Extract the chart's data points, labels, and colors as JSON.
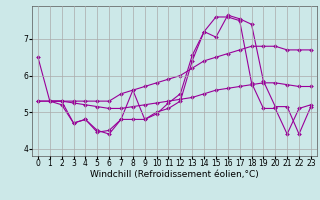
{
  "background_color": "#cce8e8",
  "grid_color": "#aaaaaa",
  "line_color": "#990099",
  "marker": "D",
  "markersize": 2,
  "linewidth": 0.8,
  "xlabel": "Windchill (Refroidissement éolien,°C)",
  "xlabel_fontsize": 6.5,
  "tick_fontsize": 5.5,
  "ylim": [
    3.8,
    7.9
  ],
  "xlim": [
    -0.5,
    23.5
  ],
  "yticks": [
    4,
    5,
    6,
    7
  ],
  "xticks": [
    0,
    1,
    2,
    3,
    4,
    5,
    6,
    7,
    8,
    9,
    10,
    11,
    12,
    13,
    14,
    15,
    16,
    17,
    18,
    19,
    20,
    21,
    22,
    23
  ],
  "series": [
    {
      "x": [
        0,
        1,
        2,
        3,
        4,
        5,
        6,
        7,
        8,
        9,
        10,
        11,
        12,
        13,
        14,
        15,
        16,
        17,
        18,
        19,
        20,
        21,
        22,
        23
      ],
      "y": [
        6.5,
        5.3,
        5.2,
        4.7,
        4.8,
        4.5,
        4.4,
        4.8,
        4.8,
        4.8,
        5.0,
        5.1,
        5.3,
        6.4,
        7.2,
        7.6,
        7.6,
        7.5,
        5.8,
        5.1,
        5.1,
        4.4,
        5.1,
        5.2
      ]
    },
    {
      "x": [
        0,
        1,
        2,
        3,
        4,
        5,
        6,
        7,
        8,
        9,
        10,
        11,
        12,
        13,
        14,
        15,
        16,
        17,
        18,
        19,
        20,
        21,
        22,
        23
      ],
      "y": [
        5.3,
        5.3,
        5.3,
        5.3,
        5.3,
        5.3,
        5.3,
        5.5,
        5.6,
        5.7,
        5.8,
        5.9,
        6.0,
        6.2,
        6.4,
        6.5,
        6.6,
        6.7,
        6.8,
        6.8,
        6.8,
        6.7,
        6.7,
        6.7
      ]
    },
    {
      "x": [
        0,
        1,
        2,
        3,
        4,
        5,
        6,
        7,
        8,
        9,
        10,
        11,
        12,
        13,
        14,
        15,
        16,
        17,
        18,
        19,
        20,
        21,
        22,
        23
      ],
      "y": [
        5.3,
        5.3,
        5.3,
        5.25,
        5.2,
        5.15,
        5.1,
        5.1,
        5.15,
        5.2,
        5.25,
        5.3,
        5.35,
        5.4,
        5.5,
        5.6,
        5.65,
        5.7,
        5.75,
        5.8,
        5.8,
        5.75,
        5.7,
        5.7
      ]
    },
    {
      "x": [
        1,
        2,
        3,
        4,
        5,
        6,
        7,
        8,
        9,
        10,
        11,
        12,
        13,
        14,
        15,
        16,
        17,
        18,
        19,
        20,
        21,
        22,
        23
      ],
      "y": [
        5.3,
        5.3,
        4.7,
        4.8,
        4.45,
        4.5,
        4.8,
        5.6,
        4.8,
        4.95,
        5.25,
        5.5,
        6.55,
        7.2,
        7.05,
        7.65,
        7.55,
        7.4,
        5.85,
        5.15,
        5.15,
        4.4,
        5.15
      ]
    }
  ]
}
